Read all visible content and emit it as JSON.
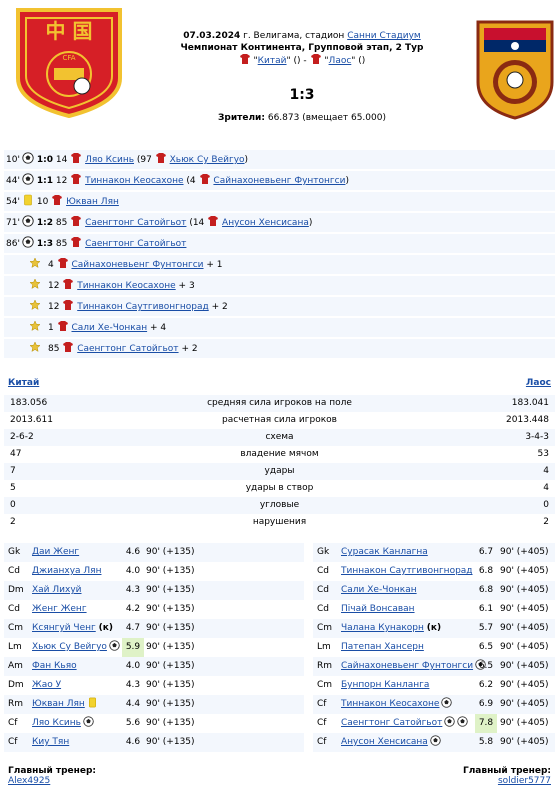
{
  "match": {
    "date": "07.03.2024",
    "city": "г. Велигама, стадион",
    "stadium": "Санни Стадиум",
    "competition": "Чемпионат Континента, Групповой этап, 2 Тур",
    "home_name": "Китай",
    "away_name": "Лаос",
    "score": "1:3",
    "attendance_label": "Зрители:",
    "attendance": "66.873 (вмещает 65.000)"
  },
  "colors": {
    "link": "#1a4ea6",
    "row_bg": "#f3f7fd",
    "rating_hl": "#dff2c7"
  },
  "events": [
    {
      "min": "10'",
      "icon": "ball-icon",
      "score": "1:0",
      "num": "14",
      "player": "Ляо Ксинь",
      "extra": "(97",
      "assist": "Хьюк Су Вейгуо",
      "tail": ")"
    },
    {
      "min": "44'",
      "icon": "ball-icon",
      "score": "1:1",
      "num": "12",
      "player": "Тиннакон Кеосахоне",
      "extra": "(4",
      "assist": "Сайнахоневьенг Фунтонгси",
      "tail": ")"
    },
    {
      "min": "54'",
      "icon": "yellow-card-icon",
      "score": "",
      "num": "10",
      "player": "Юкван Лян",
      "extra": "",
      "assist": "",
      "tail": ""
    },
    {
      "min": "71'",
      "icon": "ball-icon",
      "score": "1:2",
      "num": "85",
      "player": "Саенгтонг Сатойгьот",
      "extra": "(14",
      "assist": "Анусон Хенсисана",
      "tail": ")"
    },
    {
      "min": "86'",
      "icon": "ball-icon",
      "score": "1:3",
      "num": "85",
      "player": "Саенгтонг Сатойгьот",
      "extra": "",
      "assist": "",
      "tail": ""
    }
  ],
  "bonuses": [
    {
      "num": "4",
      "player": "Сайнахоневьенг Фунтонгси",
      "bonus": "+ 1"
    },
    {
      "num": "12",
      "player": "Тиннакон Кеосахоне",
      "bonus": "+ 3"
    },
    {
      "num": "12",
      "player": "Тиннакон Саутгивонгнорад",
      "bonus": "+ 2"
    },
    {
      "num": "1",
      "player": "Сали Хе-Чонкан",
      "bonus": "+ 4"
    },
    {
      "num": "85",
      "player": "Саенгтонг Сатойгьот",
      "bonus": "+ 2"
    }
  ],
  "stats": [
    {
      "home": "183.056",
      "label": "средняя сила игроков на поле",
      "away": "183.041"
    },
    {
      "home": "2013.611",
      "label": "расчетная сила игроков",
      "away": "2013.448"
    },
    {
      "home": "2-6-2",
      "label": "схема",
      "away": "3-4-3"
    },
    {
      "home": "47",
      "label": "владение мячом",
      "away": "53"
    },
    {
      "home": "7",
      "label": "удары",
      "away": "4"
    },
    {
      "home": "5",
      "label": "удары в створ",
      "away": "4"
    },
    {
      "home": "0",
      "label": "угловые",
      "away": "0"
    },
    {
      "home": "2",
      "label": "нарушения",
      "away": "2"
    }
  ],
  "home_lineup": [
    {
      "pos": "Gk",
      "name": "Даи Женг",
      "mark": "",
      "mark2": "",
      "rating": "4.6",
      "mins": "90' (+135)"
    },
    {
      "pos": "Cd",
      "name": "Джианхуа Лян",
      "mark": "",
      "mark2": "",
      "rating": "4.0",
      "mins": "90' (+135)"
    },
    {
      "pos": "Dm",
      "name": "Хай Лихуй",
      "mark": "",
      "mark2": "",
      "rating": "4.3",
      "mins": "90' (+135)"
    },
    {
      "pos": "Cd",
      "name": "Женг Женг",
      "mark": "",
      "mark2": "",
      "rating": "4.2",
      "mins": "90' (+135)"
    },
    {
      "pos": "Cm",
      "name": "Ксянгуй Ченг",
      "mark": "(к)",
      "mark2": "",
      "rating": "4.7",
      "mins": "90' (+135)"
    },
    {
      "pos": "Lm",
      "name": "Хьюк Су Вейгуо",
      "mark": "",
      "mark2": "ball-icon",
      "rating": "5.9",
      "mins": "90' (+135)",
      "hl": true
    },
    {
      "pos": "Am",
      "name": "Фан Кьяо",
      "mark": "",
      "mark2": "",
      "rating": "4.0",
      "mins": "90' (+135)"
    },
    {
      "pos": "Dm",
      "name": "Жао У",
      "mark": "",
      "mark2": "",
      "rating": "4.3",
      "mins": "90' (+135)"
    },
    {
      "pos": "Rm",
      "name": "Юкван Лян",
      "mark": "",
      "mark2": "yellow-card-icon",
      "rating": "4.4",
      "mins": "90' (+135)"
    },
    {
      "pos": "Cf",
      "name": "Ляо Ксинь",
      "mark": "",
      "mark2": "ball-icon",
      "rating": "5.6",
      "mins": "90' (+135)"
    },
    {
      "pos": "Cf",
      "name": "Киу Тян",
      "mark": "",
      "mark2": "",
      "rating": "4.6",
      "mins": "90' (+135)"
    }
  ],
  "away_lineup": [
    {
      "pos": "Gk",
      "name": "Сурасак Канлагна",
      "mark": "",
      "balls": 0,
      "rating": "6.7",
      "mins": "90' (+405)"
    },
    {
      "pos": "Cd",
      "name": "Тиннакон Саутгивонгнорад",
      "mark": "",
      "balls": 0,
      "rating": "6.8",
      "mins": "90' (+405)"
    },
    {
      "pos": "Cd",
      "name": "Сали Хе-Чонкан",
      "mark": "",
      "balls": 0,
      "rating": "6.8",
      "mins": "90' (+405)"
    },
    {
      "pos": "Cd",
      "name": "Пiчай Вонсаван",
      "mark": "",
      "balls": 0,
      "rating": "6.1",
      "mins": "90' (+405)"
    },
    {
      "pos": "Cm",
      "name": "Чалана Кунакорн",
      "mark": "(к)",
      "balls": 0,
      "rating": "5.7",
      "mins": "90' (+405)"
    },
    {
      "pos": "Lm",
      "name": "Патепан Хансерн",
      "mark": "",
      "balls": 0,
      "rating": "6.5",
      "mins": "90' (+405)"
    },
    {
      "pos": "Rm",
      "name": "Сайнахоневьенг Фунтонгси",
      "mark": "",
      "balls": 1,
      "rating": "6.5",
      "mins": "90' (+405)"
    },
    {
      "pos": "Cm",
      "name": "Бунпорн Канланга",
      "mark": "",
      "balls": 0,
      "rating": "6.2",
      "mins": "90' (+405)"
    },
    {
      "pos": "Cf",
      "name": "Тиннакон Кеосахоне",
      "mark": "",
      "balls": 1,
      "rating": "6.9",
      "mins": "90' (+405)"
    },
    {
      "pos": "Cf",
      "name": "Саенгтонг Сатойгьот",
      "mark": "",
      "balls": 2,
      "rating": "7.8",
      "mins": "90' (+405)",
      "hl": true
    },
    {
      "pos": "Cf",
      "name": "Анусон Хенсисана",
      "mark": "",
      "balls": 1,
      "rating": "5.8",
      "mins": "90' (+405)"
    }
  ],
  "coaches": {
    "label": "Главный тренер:",
    "home": "Alex4925",
    "away": "soldier5777"
  },
  "logos": {
    "home_text": "中 国",
    "home_sub": "CFA"
  }
}
